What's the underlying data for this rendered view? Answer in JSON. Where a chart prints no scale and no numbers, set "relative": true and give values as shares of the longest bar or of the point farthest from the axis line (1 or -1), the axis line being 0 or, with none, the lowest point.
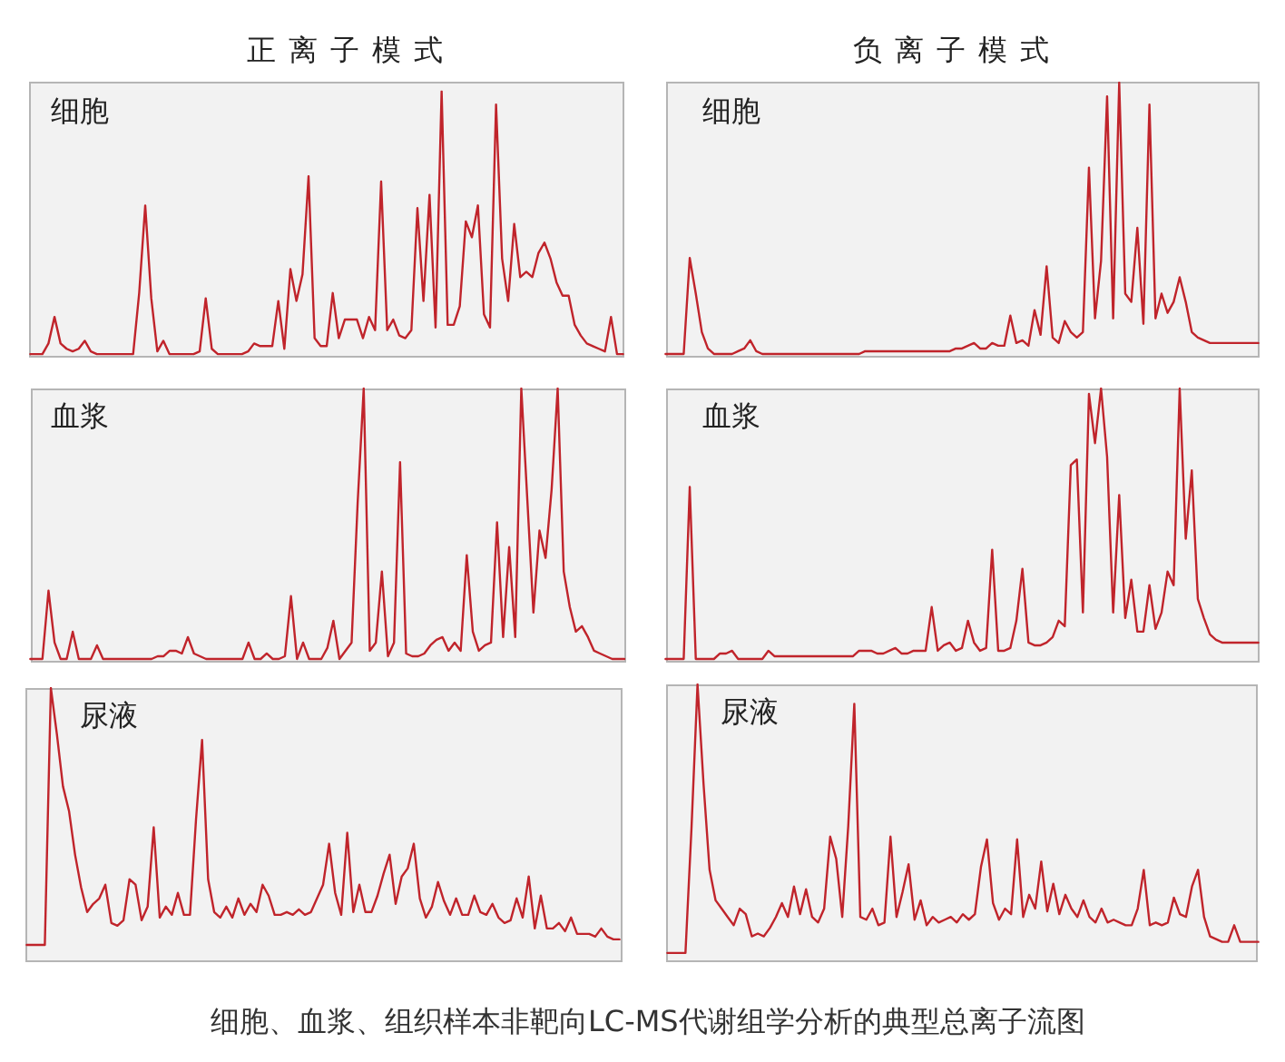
{
  "chart_data": [
    {
      "type": "line",
      "title": "细胞",
      "annotations": [
        "正离子模式"
      ],
      "relative": true,
      "tick_labels": false,
      "color": "#c0242b",
      "categories": [
        null,
        null,
        null,
        null,
        null,
        null,
        null,
        null,
        null,
        null,
        null,
        null,
        null,
        null,
        null,
        null,
        null,
        null,
        null,
        null,
        null,
        null,
        null,
        null,
        null,
        null,
        null,
        null,
        null,
        null,
        null,
        null,
        null,
        null,
        null,
        null,
        null,
        null,
        null,
        null,
        null,
        null,
        null,
        null,
        null,
        null,
        null,
        null,
        null,
        null,
        null,
        null,
        null,
        null,
        null,
        null,
        null,
        null,
        null,
        null,
        null,
        null,
        null,
        null,
        null,
        null,
        null,
        null,
        null,
        null,
        null,
        null,
        null,
        null,
        null,
        null,
        null,
        null,
        null,
        null,
        null,
        null,
        null,
        null,
        null,
        null,
        null,
        null,
        null,
        null,
        null,
        null,
        null,
        null,
        null,
        null,
        null,
        null,
        null
      ],
      "values": [
        0.01,
        0.01,
        0.01,
        0.05,
        0.15,
        0.05,
        0.03,
        0.02,
        0.03,
        0.06,
        0.02,
        0.01,
        0.01,
        0.01,
        0.01,
        0.01,
        0.01,
        0.01,
        0.24,
        0.57,
        0.22,
        0.02,
        0.06,
        0.01,
        0.01,
        0.01,
        0.01,
        0.01,
        0.02,
        0.22,
        0.03,
        0.01,
        0.01,
        0.01,
        0.01,
        0.01,
        0.02,
        0.05,
        0.04,
        0.04,
        0.04,
        0.21,
        0.03,
        0.33,
        0.21,
        0.31,
        0.68,
        0.07,
        0.04,
        0.04,
        0.24,
        0.07,
        0.14,
        0.14,
        0.14,
        0.07,
        0.15,
        0.1,
        0.66,
        0.1,
        0.14,
        0.08,
        0.07,
        0.1,
        0.56,
        0.21,
        0.61,
        0.11,
        1,
        0.12,
        0.12,
        0.19,
        0.51,
        0.45,
        0.57,
        0.16,
        0.11,
        0.95,
        0.37,
        0.21,
        0.5,
        0.3,
        0.32,
        0.3,
        0.39,
        0.43,
        0.37,
        0.28,
        0.23,
        0.23,
        0.12,
        0.08,
        0.05,
        0.04,
        0.03,
        0.02,
        0.15,
        0.01,
        0.01
      ]
    },
    {
      "type": "line",
      "title": "细胞",
      "annotations": [
        "负离子模式"
      ],
      "relative": true,
      "tick_labels": false,
      "color": "#c0242b",
      "categories": [
        null,
        null,
        null,
        null,
        null,
        null,
        null,
        null,
        null,
        null,
        null,
        null,
        null,
        null,
        null,
        null,
        null,
        null,
        null,
        null,
        null,
        null,
        null,
        null,
        null,
        null,
        null,
        null,
        null,
        null,
        null,
        null,
        null,
        null,
        null,
        null,
        null,
        null,
        null,
        null,
        null,
        null,
        null,
        null,
        null,
        null,
        null,
        null,
        null,
        null,
        null,
        null,
        null,
        null,
        null,
        null,
        null,
        null,
        null,
        null,
        null,
        null,
        null,
        null,
        null,
        null,
        null,
        null,
        null,
        null,
        null,
        null,
        null,
        null,
        null,
        null,
        null,
        null,
        null,
        null,
        null,
        null,
        null,
        null,
        null,
        null,
        null,
        null,
        null,
        null,
        null,
        null,
        null,
        null,
        null,
        null,
        null,
        null,
        null
      ],
      "values": [
        0.01,
        0.01,
        0.01,
        0.01,
        0.36,
        0.23,
        0.09,
        0.03,
        0.01,
        0.01,
        0.01,
        0.01,
        0.02,
        0.03,
        0.06,
        0.02,
        0.01,
        0.01,
        0.01,
        0.01,
        0.01,
        0.01,
        0.01,
        0.01,
        0.01,
        0.01,
        0.01,
        0.01,
        0.01,
        0.01,
        0.01,
        0.01,
        0.01,
        0.02,
        0.02,
        0.02,
        0.02,
        0.02,
        0.02,
        0.02,
        0.02,
        0.02,
        0.02,
        0.02,
        0.02,
        0.02,
        0.02,
        0.02,
        0.03,
        0.03,
        0.04,
        0.05,
        0.03,
        0.03,
        0.05,
        0.04,
        0.04,
        0.15,
        0.05,
        0.06,
        0.04,
        0.17,
        0.08,
        0.33,
        0.07,
        0.05,
        0.13,
        0.09,
        0.07,
        0.09,
        0.69,
        0.14,
        0.35,
        0.95,
        0.14,
        1,
        0.23,
        0.2,
        0.47,
        0.12,
        0.92,
        0.14,
        0.23,
        0.16,
        0.2,
        0.29,
        0.2,
        0.09,
        0.07,
        0.06,
        0.05,
        0.05,
        0.05,
        0.05,
        0.05,
        0.05,
        0.05,
        0.05,
        0.05
      ]
    },
    {
      "type": "line",
      "title": "血浆",
      "relative": true,
      "tick_labels": false,
      "color": "#c0242b",
      "categories": [
        null,
        null,
        null,
        null,
        null,
        null,
        null,
        null,
        null,
        null,
        null,
        null,
        null,
        null,
        null,
        null,
        null,
        null,
        null,
        null,
        null,
        null,
        null,
        null,
        null,
        null,
        null,
        null,
        null,
        null,
        null,
        null,
        null,
        null,
        null,
        null,
        null,
        null,
        null,
        null,
        null,
        null,
        null,
        null,
        null,
        null,
        null,
        null,
        null,
        null,
        null,
        null,
        null,
        null,
        null,
        null,
        null,
        null,
        null,
        null,
        null,
        null,
        null,
        null,
        null,
        null,
        null,
        null,
        null,
        null,
        null,
        null,
        null,
        null,
        null,
        null,
        null,
        null,
        null,
        null,
        null,
        null,
        null,
        null,
        null,
        null,
        null,
        null,
        null,
        null,
        null,
        null,
        null,
        null,
        null,
        null,
        null,
        null,
        null
      ],
      "values": [
        0.01,
        0.01,
        0.01,
        0.26,
        0.07,
        0.01,
        0.01,
        0.11,
        0.01,
        0.01,
        0.01,
        0.06,
        0.01,
        0.01,
        0.01,
        0.01,
        0.01,
        0.01,
        0.01,
        0.01,
        0.01,
        0.02,
        0.02,
        0.04,
        0.04,
        0.03,
        0.09,
        0.03,
        0.02,
        0.01,
        0.01,
        0.01,
        0.01,
        0.01,
        0.01,
        0.01,
        0.07,
        0.01,
        0.01,
        0.03,
        0.01,
        0.01,
        0.02,
        0.24,
        0.01,
        0.07,
        0.01,
        0.01,
        0.01,
        0.05,
        0.15,
        0.01,
        0.04,
        0.07,
        0.58,
        1,
        0.04,
        0.07,
        0.33,
        0.02,
        0.07,
        0.73,
        0.03,
        0.02,
        0.02,
        0.03,
        0.06,
        0.08,
        0.09,
        0.04,
        0.07,
        0.04,
        0.39,
        0.11,
        0.04,
        0.06,
        0.07,
        0.51,
        0.09,
        0.42,
        0.09,
        1,
        0.59,
        0.18,
        0.48,
        0.38,
        0.63,
        1,
        0.33,
        0.2,
        0.11,
        0.13,
        0.09,
        0.04,
        0.03,
        0.02,
        0.01,
        0.01,
        0.01
      ]
    },
    {
      "type": "line",
      "title": "血浆",
      "relative": true,
      "tick_labels": false,
      "color": "#c0242b",
      "categories": [
        null,
        null,
        null,
        null,
        null,
        null,
        null,
        null,
        null,
        null,
        null,
        null,
        null,
        null,
        null,
        null,
        null,
        null,
        null,
        null,
        null,
        null,
        null,
        null,
        null,
        null,
        null,
        null,
        null,
        null,
        null,
        null,
        null,
        null,
        null,
        null,
        null,
        null,
        null,
        null,
        null,
        null,
        null,
        null,
        null,
        null,
        null,
        null,
        null,
        null,
        null,
        null,
        null,
        null,
        null,
        null,
        null,
        null,
        null,
        null,
        null,
        null,
        null,
        null,
        null,
        null,
        null,
        null,
        null,
        null,
        null,
        null,
        null,
        null,
        null,
        null,
        null,
        null,
        null,
        null,
        null,
        null,
        null,
        null,
        null,
        null,
        null,
        null,
        null,
        null,
        null,
        null,
        null,
        null,
        null,
        null,
        null,
        null,
        null
      ],
      "values": [
        0.01,
        0.01,
        0.01,
        0.01,
        0.64,
        0.01,
        0.01,
        0.01,
        0.01,
        0.03,
        0.03,
        0.04,
        0.01,
        0.01,
        0.01,
        0.01,
        0.01,
        0.04,
        0.02,
        0.02,
        0.02,
        0.02,
        0.02,
        0.02,
        0.02,
        0.02,
        0.02,
        0.02,
        0.02,
        0.02,
        0.02,
        0.02,
        0.04,
        0.04,
        0.04,
        0.03,
        0.03,
        0.04,
        0.05,
        0.03,
        0.03,
        0.04,
        0.04,
        0.04,
        0.2,
        0.04,
        0.06,
        0.07,
        0.04,
        0.05,
        0.15,
        0.07,
        0.04,
        0.05,
        0.41,
        0.04,
        0.04,
        0.05,
        0.15,
        0.34,
        0.07,
        0.06,
        0.06,
        0.07,
        0.09,
        0.15,
        0.13,
        0.72,
        0.74,
        0.18,
        0.98,
        0.8,
        1,
        0.75,
        0.18,
        0.61,
        0.16,
        0.3,
        0.11,
        0.11,
        0.28,
        0.12,
        0.18,
        0.33,
        0.28,
        1,
        0.45,
        0.7,
        0.23,
        0.16,
        0.1,
        0.08,
        0.07,
        0.07,
        0.07,
        0.07,
        0.07,
        0.07,
        0.07
      ]
    },
    {
      "type": "line",
      "title": "尿液",
      "relative": true,
      "tick_labels": false,
      "color": "#c0242b",
      "categories": [
        null,
        null,
        null,
        null,
        null,
        null,
        null,
        null,
        null,
        null,
        null,
        null,
        null,
        null,
        null,
        null,
        null,
        null,
        null,
        null,
        null,
        null,
        null,
        null,
        null,
        null,
        null,
        null,
        null,
        null,
        null,
        null,
        null,
        null,
        null,
        null,
        null,
        null,
        null,
        null,
        null,
        null,
        null,
        null,
        null,
        null,
        null,
        null,
        null,
        null,
        null,
        null,
        null,
        null,
        null,
        null,
        null,
        null,
        null,
        null,
        null,
        null,
        null,
        null,
        null,
        null,
        null,
        null,
        null,
        null,
        null,
        null,
        null,
        null,
        null,
        null,
        null,
        null,
        null,
        null,
        null,
        null,
        null,
        null,
        null,
        null,
        null,
        null,
        null,
        null,
        null,
        null,
        null,
        null,
        null,
        null,
        null,
        null,
        null
      ],
      "values": [
        0.06,
        0.06,
        0.06,
        0.06,
        1,
        0.83,
        0.64,
        0.55,
        0.39,
        0.27,
        0.18,
        0.21,
        0.23,
        0.28,
        0.14,
        0.13,
        0.15,
        0.3,
        0.28,
        0.15,
        0.2,
        0.49,
        0.16,
        0.2,
        0.17,
        0.25,
        0.17,
        0.17,
        0.52,
        0.81,
        0.3,
        0.18,
        0.16,
        0.2,
        0.16,
        0.23,
        0.17,
        0.21,
        0.18,
        0.28,
        0.24,
        0.17,
        0.17,
        0.18,
        0.17,
        0.19,
        0.17,
        0.18,
        0.23,
        0.28,
        0.43,
        0.25,
        0.17,
        0.47,
        0.18,
        0.28,
        0.18,
        0.18,
        0.24,
        0.32,
        0.39,
        0.21,
        0.31,
        0.34,
        0.43,
        0.23,
        0.16,
        0.2,
        0.29,
        0.22,
        0.17,
        0.23,
        0.17,
        0.17,
        0.24,
        0.18,
        0.17,
        0.21,
        0.16,
        0.14,
        0.15,
        0.23,
        0.16,
        0.31,
        0.12,
        0.24,
        0.12,
        0.12,
        0.14,
        0.11,
        0.16,
        0.1,
        0.1,
        0.1,
        0.09,
        0.12,
        0.09,
        0.08,
        0.08
      ]
    },
    {
      "type": "line",
      "title": "尿液",
      "annotations": [
        "细胞、血浆、组织样本非靶向LC-MS代谢组学分析的典型总离子流图"
      ],
      "relative": true,
      "tick_labels": false,
      "color": "#c0242b",
      "categories": [
        null,
        null,
        null,
        null,
        null,
        null,
        null,
        null,
        null,
        null,
        null,
        null,
        null,
        null,
        null,
        null,
        null,
        null,
        null,
        null,
        null,
        null,
        null,
        null,
        null,
        null,
        null,
        null,
        null,
        null,
        null,
        null,
        null,
        null,
        null,
        null,
        null,
        null,
        null,
        null,
        null,
        null,
        null,
        null,
        null,
        null,
        null,
        null,
        null,
        null,
        null,
        null,
        null,
        null,
        null,
        null,
        null,
        null,
        null,
        null,
        null,
        null,
        null,
        null,
        null,
        null,
        null,
        null,
        null,
        null,
        null,
        null,
        null,
        null,
        null,
        null,
        null,
        null,
        null,
        null,
        null,
        null,
        null,
        null,
        null,
        null,
        null,
        null,
        null,
        null,
        null,
        null,
        null,
        null,
        null,
        null,
        null,
        null,
        null
      ],
      "values": [
        0.03,
        0.03,
        0.03,
        0.03,
        0.48,
        1,
        0.64,
        0.33,
        0.22,
        0.19,
        0.16,
        0.13,
        0.19,
        0.17,
        0.09,
        0.1,
        0.09,
        0.12,
        0.16,
        0.21,
        0.16,
        0.27,
        0.17,
        0.26,
        0.16,
        0.14,
        0.19,
        0.45,
        0.37,
        0.16,
        0.49,
        0.93,
        0.16,
        0.15,
        0.19,
        0.13,
        0.14,
        0.45,
        0.16,
        0.25,
        0.35,
        0.15,
        0.22,
        0.13,
        0.16,
        0.14,
        0.15,
        0.16,
        0.14,
        0.17,
        0.15,
        0.17,
        0.34,
        0.44,
        0.21,
        0.15,
        0.19,
        0.17,
        0.44,
        0.16,
        0.24,
        0.19,
        0.36,
        0.18,
        0.28,
        0.17,
        0.24,
        0.19,
        0.16,
        0.22,
        0.16,
        0.14,
        0.19,
        0.14,
        0.15,
        0.14,
        0.13,
        0.13,
        0.19,
        0.33,
        0.13,
        0.14,
        0.13,
        0.14,
        0.23,
        0.17,
        0.16,
        0.27,
        0.33,
        0.16,
        0.09,
        0.08,
        0.07,
        0.07,
        0.13,
        0.07,
        0.07,
        0.07,
        0.07
      ]
    }
  ]
}
